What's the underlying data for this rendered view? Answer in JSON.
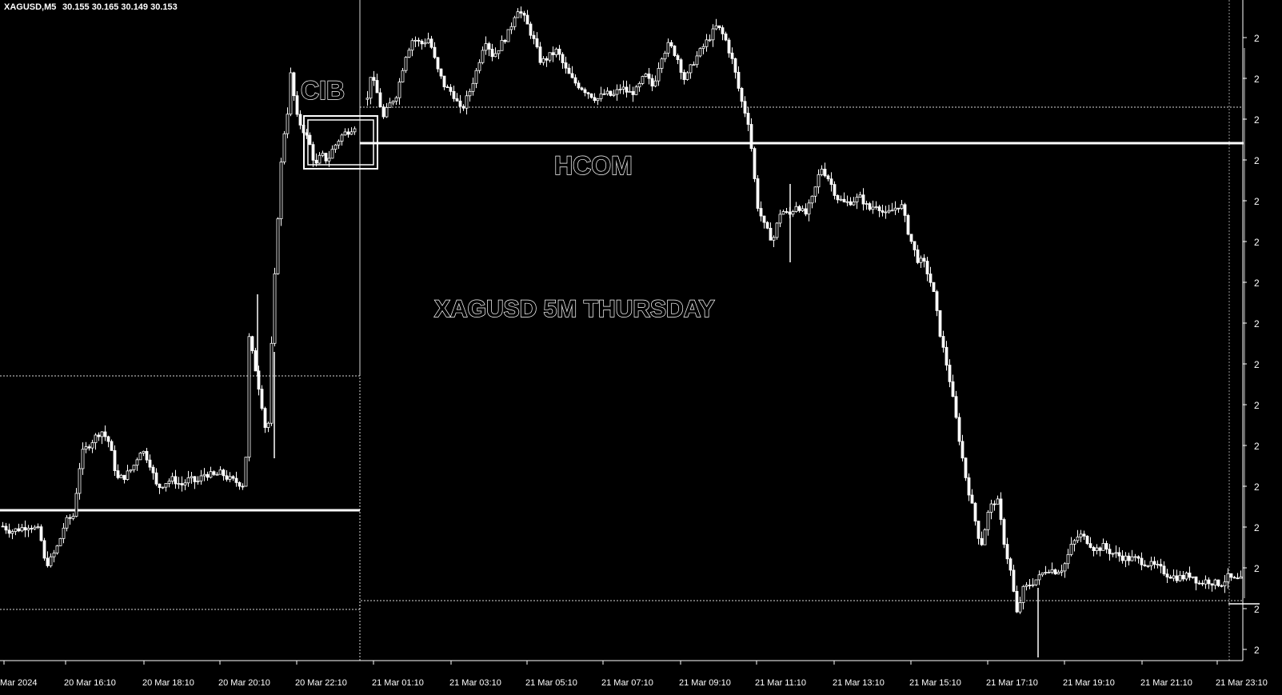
{
  "colors": {
    "background": "#000000",
    "foreground": "#ffffff"
  },
  "chart_data": {
    "type": "candlestick",
    "header": {
      "symbol": "XAGUSD,M5",
      "ohlc": "30.155 30.165 30.149 30.153"
    },
    "annotations": [
      {
        "id": "cib",
        "text": "CIB"
      },
      {
        "id": "hcom",
        "text": "HCOM"
      },
      {
        "id": "title",
        "text": "XAGUSD 5M THURSDAY"
      }
    ],
    "x_ticks": [
      "Mar 2024",
      "20 Mar 16:10",
      "20 Mar 18:10",
      "20 Mar 20:10",
      "20 Mar 22:10",
      "21 Mar 01:10",
      "21 Mar 03:10",
      "21 Mar 05:10",
      "21 Mar 07:10",
      "21 Mar 09:10",
      "21 Mar 11:10",
      "21 Mar 13:10",
      "21 Mar 15:10",
      "21 Mar 17:10",
      "21 Mar 19:10",
      "21 Mar 21:10",
      "21 Mar 23:10"
    ],
    "y_tick_labels": [
      "2",
      "2",
      "2",
      "2",
      "2",
      "2",
      "2",
      "2",
      "2",
      "2",
      "2",
      "2",
      "2",
      "2",
      "2",
      "2"
    ],
    "grid": false,
    "price_path": [
      [
        0,
        0.195
      ],
      [
        12,
        0.185
      ],
      [
        25,
        0.19
      ],
      [
        35,
        0.195
      ],
      [
        48,
        0.185
      ],
      [
        55,
        0.13
      ],
      [
        63,
        0.14
      ],
      [
        72,
        0.165
      ],
      [
        80,
        0.2
      ],
      [
        90,
        0.21
      ],
      [
        100,
        0.31
      ],
      [
        112,
        0.33
      ],
      [
        125,
        0.35
      ],
      [
        135,
        0.33
      ],
      [
        145,
        0.27
      ],
      [
        155,
        0.275
      ],
      [
        165,
        0.29
      ],
      [
        175,
        0.32
      ],
      [
        185,
        0.3
      ],
      [
        195,
        0.255
      ],
      [
        205,
        0.265
      ],
      [
        215,
        0.27
      ],
      [
        225,
        0.26
      ],
      [
        235,
        0.27
      ],
      [
        245,
        0.265
      ],
      [
        255,
        0.28
      ],
      [
        265,
        0.275
      ],
      [
        275,
        0.28
      ],
      [
        285,
        0.27
      ],
      [
        295,
        0.265
      ],
      [
        305,
        0.26
      ],
      [
        310,
        0.5
      ],
      [
        318,
        0.45
      ],
      [
        325,
        0.4
      ],
      [
        333,
        0.33
      ],
      [
        340,
        0.55
      ],
      [
        348,
        0.75
      ],
      [
        352,
        0.82
      ],
      [
        358,
        0.87
      ],
      [
        362,
        0.93
      ],
      [
        370,
        0.86
      ],
      [
        378,
        0.84
      ],
      [
        385,
        0.82
      ],
      [
        393,
        0.78
      ],
      [
        400,
        0.8
      ],
      [
        408,
        0.79
      ],
      [
        415,
        0.81
      ],
      [
        425,
        0.83
      ],
      [
        435,
        0.84
      ],
      [
        445,
        0.85
      ],
      [
        455,
        0.86
      ],
      [
        462,
        0.93
      ],
      [
        470,
        0.9
      ],
      [
        478,
        0.86
      ],
      [
        485,
        0.88
      ],
      [
        495,
        0.9
      ],
      [
        505,
        0.96
      ],
      [
        515,
        0.99
      ],
      [
        525,
        0.98
      ],
      [
        535,
        0.99
      ],
      [
        545,
        0.94
      ],
      [
        555,
        0.91
      ],
      [
        565,
        0.9
      ],
      [
        575,
        0.87
      ],
      [
        585,
        0.9
      ],
      [
        595,
        0.94
      ],
      [
        605,
        0.99
      ],
      [
        615,
        0.96
      ],
      [
        625,
        0.98
      ],
      [
        635,
        1.0
      ],
      [
        645,
        1.04
      ],
      [
        655,
        1.02
      ],
      [
        665,
        0.99
      ],
      [
        675,
        0.95
      ],
      [
        685,
        0.96
      ],
      [
        695,
        0.97
      ],
      [
        705,
        0.94
      ],
      [
        715,
        0.92
      ],
      [
        725,
        0.91
      ],
      [
        735,
        0.9
      ],
      [
        745,
        0.89
      ],
      [
        755,
        0.9
      ],
      [
        765,
        0.895
      ],
      [
        775,
        0.91
      ],
      [
        785,
        0.9
      ],
      [
        795,
        0.905
      ],
      [
        805,
        0.93
      ],
      [
        815,
        0.91
      ],
      [
        825,
        0.96
      ],
      [
        835,
        0.98
      ],
      [
        845,
        0.96
      ],
      [
        855,
        0.92
      ],
      [
        865,
        0.95
      ],
      [
        875,
        0.97
      ],
      [
        885,
        0.99
      ],
      [
        895,
        1.01
      ],
      [
        905,
        0.99
      ],
      [
        915,
        0.95
      ],
      [
        925,
        0.89
      ],
      [
        935,
        0.85
      ],
      [
        945,
        0.72
      ],
      [
        955,
        0.68
      ],
      [
        965,
        0.66
      ],
      [
        975,
        0.71
      ],
      [
        985,
        0.7
      ],
      [
        995,
        0.72
      ],
      [
        1005,
        0.7
      ],
      [
        1015,
        0.73
      ],
      [
        1025,
        0.78
      ],
      [
        1035,
        0.76
      ],
      [
        1045,
        0.73
      ],
      [
        1055,
        0.72
      ],
      [
        1065,
        0.725
      ],
      [
        1075,
        0.73
      ],
      [
        1085,
        0.71
      ],
      [
        1095,
        0.72
      ],
      [
        1105,
        0.7
      ],
      [
        1115,
        0.71
      ],
      [
        1125,
        0.72
      ],
      [
        1135,
        0.67
      ],
      [
        1145,
        0.63
      ],
      [
        1155,
        0.62
      ],
      [
        1165,
        0.58
      ],
      [
        1175,
        0.5
      ],
      [
        1185,
        0.44
      ],
      [
        1195,
        0.36
      ],
      [
        1205,
        0.28
      ],
      [
        1215,
        0.22
      ],
      [
        1225,
        0.16
      ],
      [
        1235,
        0.22
      ],
      [
        1245,
        0.24
      ],
      [
        1255,
        0.16
      ],
      [
        1262,
        0.12
      ],
      [
        1270,
        0.05
      ],
      [
        1278,
        0.09
      ],
      [
        1288,
        0.1
      ],
      [
        1298,
        0.11
      ],
      [
        1308,
        0.125
      ],
      [
        1318,
        0.12
      ],
      [
        1328,
        0.125
      ],
      [
        1338,
        0.16
      ],
      [
        1348,
        0.18
      ],
      [
        1358,
        0.17
      ],
      [
        1368,
        0.155
      ],
      [
        1378,
        0.16
      ],
      [
        1388,
        0.15
      ],
      [
        1398,
        0.145
      ],
      [
        1408,
        0.14
      ],
      [
        1418,
        0.14
      ],
      [
        1428,
        0.135
      ],
      [
        1438,
        0.13
      ],
      [
        1448,
        0.125
      ],
      [
        1458,
        0.115
      ],
      [
        1468,
        0.11
      ],
      [
        1478,
        0.11
      ],
      [
        1488,
        0.115
      ],
      [
        1498,
        0.1
      ],
      [
        1508,
        0.105
      ],
      [
        1518,
        0.1
      ],
      [
        1526,
        0.1
      ],
      [
        1534,
        0.11
      ],
      [
        1542,
        0.105
      ],
      [
        1552,
        0.105
      ]
    ]
  }
}
